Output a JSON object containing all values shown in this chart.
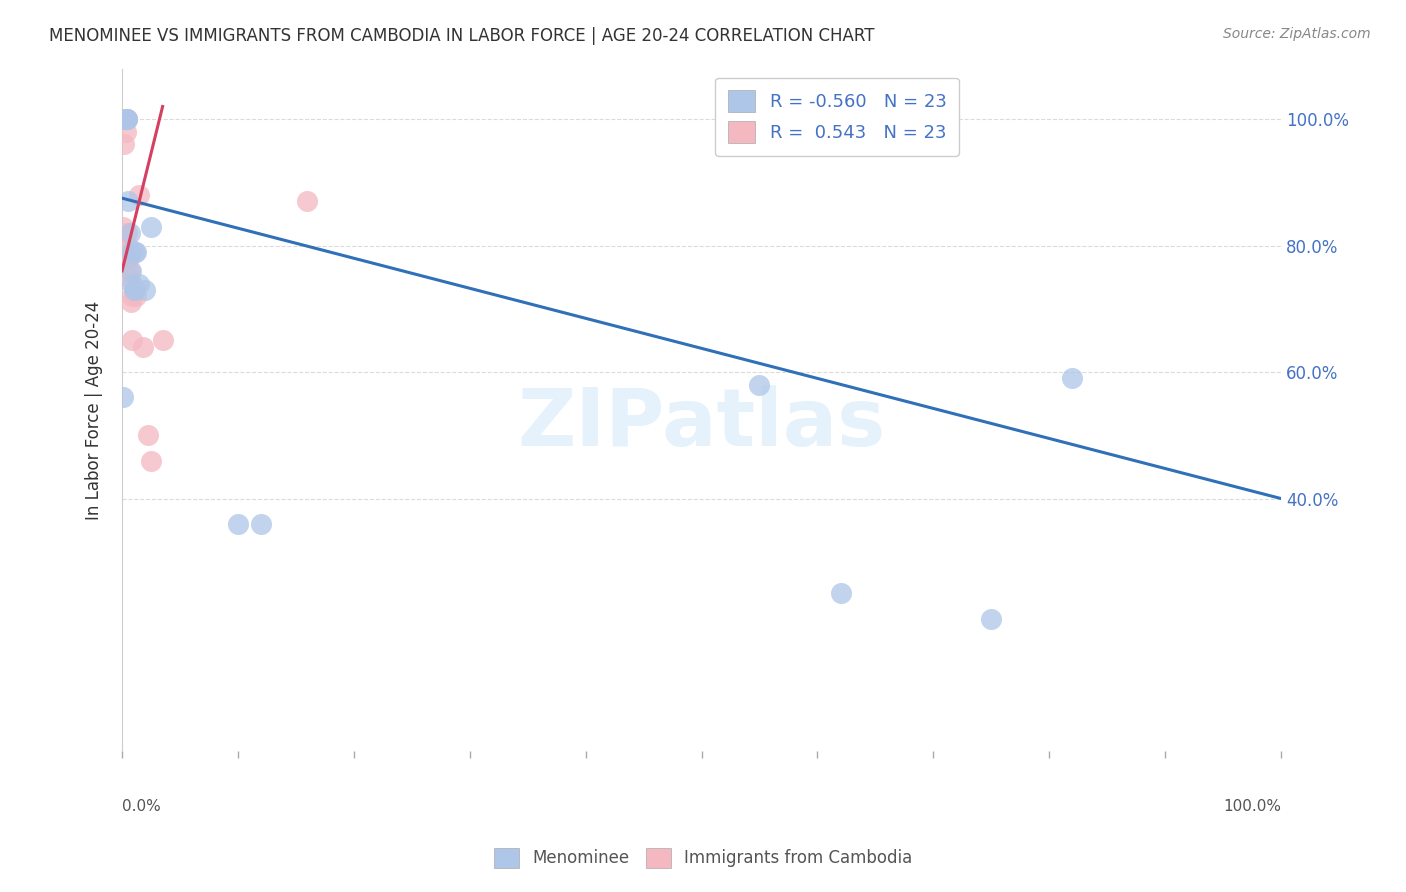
{
  "title": "MENOMINEE VS IMMIGRANTS FROM CAMBODIA IN LABOR FORCE | AGE 20-24 CORRELATION CHART",
  "source": "Source: ZipAtlas.com",
  "ylabel": "In Labor Force | Age 20-24",
  "menominee_color": "#aec6e8",
  "cambodia_color": "#f4b8c1",
  "menominee_line_color": "#3070b8",
  "cambodia_line_color": "#d44060",
  "background_color": "#ffffff",
  "grid_color": "#cccccc",
  "menominee_x": [
    0.001,
    0.003,
    0.003,
    0.004,
    0.004,
    0.005,
    0.007,
    0.008,
    0.008,
    0.009,
    0.01,
    0.011,
    0.011,
    0.012,
    0.015,
    0.02,
    0.025,
    0.1,
    0.12,
    0.55,
    0.62,
    0.75,
    0.82
  ],
  "menominee_y": [
    0.56,
    1.0,
    1.0,
    1.0,
    1.0,
    0.87,
    0.82,
    0.79,
    0.76,
    0.74,
    0.73,
    0.79,
    0.73,
    0.79,
    0.74,
    0.73,
    0.83,
    0.36,
    0.36,
    0.58,
    0.25,
    0.21,
    0.59
  ],
  "cambodia_x": [
    0.001,
    0.001,
    0.002,
    0.003,
    0.003,
    0.004,
    0.004,
    0.005,
    0.005,
    0.006,
    0.006,
    0.007,
    0.008,
    0.009,
    0.009,
    0.01,
    0.012,
    0.015,
    0.018,
    0.022,
    0.025,
    0.035,
    0.16
  ],
  "cambodia_y": [
    0.83,
    0.79,
    0.96,
    0.98,
    1.0,
    1.0,
    0.82,
    0.8,
    0.78,
    0.75,
    0.78,
    0.76,
    0.71,
    0.65,
    0.72,
    0.73,
    0.72,
    0.88,
    0.64,
    0.5,
    0.46,
    0.65,
    0.87
  ],
  "menominee_R": -0.56,
  "cambodia_R": 0.543,
  "N": 23,
  "xlim": [
    0.0,
    1.0
  ],
  "ylim": [
    0.0,
    1.08
  ],
  "blue_line_x0": 0.0,
  "blue_line_y0": 0.875,
  "blue_line_x1": 1.0,
  "blue_line_y1": 0.4,
  "pink_line_x0": 0.0,
  "pink_line_y0": 0.76,
  "pink_line_x1": 0.035,
  "pink_line_y1": 1.02
}
